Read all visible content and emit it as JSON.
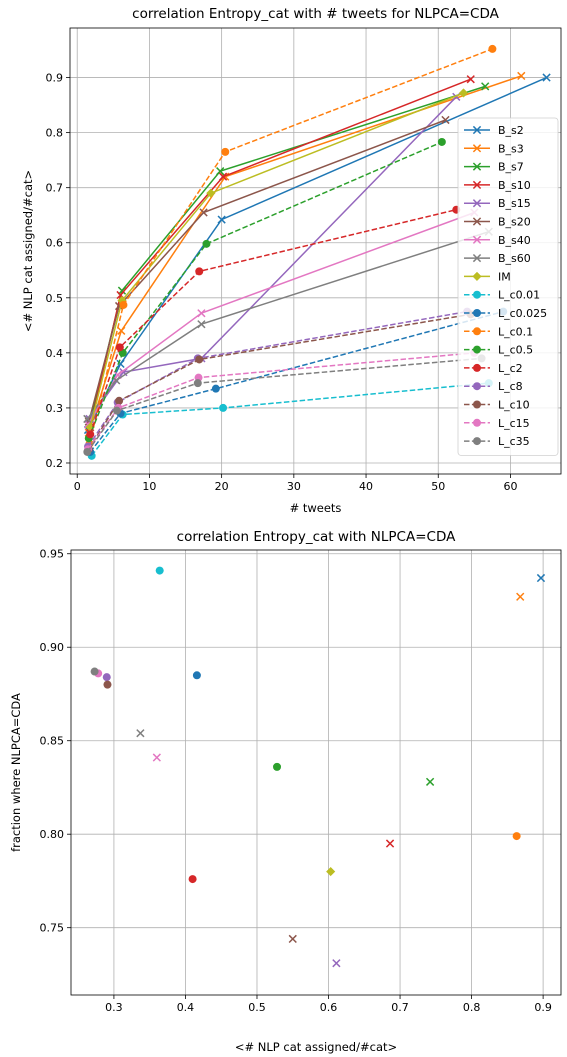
{
  "chart_data": [
    {
      "type": "line",
      "title": "correlation Entropy_cat with # tweets for NLPCA=CDA",
      "xlabel": "# tweets",
      "ylabel": "<# NLP cat assigned/#cat>",
      "xlim": [
        -1,
        67
      ],
      "ylim": [
        0.18,
        0.99
      ],
      "xticks": [
        0,
        10,
        20,
        30,
        40,
        50,
        60
      ],
      "yticks": [
        0.2,
        0.3,
        0.4,
        0.5,
        0.6,
        0.7,
        0.8,
        0.9
      ],
      "grid": true,
      "legend_position": "right",
      "series": [
        {
          "name": "B_s2",
          "color": "#1f77b4",
          "marker": "x",
          "dash": false,
          "x": [
            1.5,
            6.0,
            20.0,
            65.0
          ],
          "y": [
            0.26,
            0.38,
            0.642,
            0.9
          ]
        },
        {
          "name": "B_s3",
          "color": "#ff7f0e",
          "marker": "x",
          "dash": false,
          "x": [
            1.6,
            6.1,
            20.5,
            61.5
          ],
          "y": [
            0.255,
            0.44,
            0.72,
            0.903
          ]
        },
        {
          "name": "B_s7",
          "color": "#2ca02c",
          "marker": "x",
          "dash": false,
          "x": [
            1.7,
            6.2,
            19.8,
            56.5
          ],
          "y": [
            0.27,
            0.513,
            0.73,
            0.884
          ]
        },
        {
          "name": "B_s10",
          "color": "#d62728",
          "marker": "x",
          "dash": false,
          "x": [
            1.8,
            6.0,
            20.2,
            54.5
          ],
          "y": [
            0.265,
            0.505,
            0.72,
            0.897
          ]
        },
        {
          "name": "B_s15",
          "color": "#9467bd",
          "marker": "x",
          "dash": false,
          "x": [
            1.7,
            6.4,
            17.2,
            52.5
          ],
          "y": [
            0.28,
            0.365,
            0.39,
            0.865
          ]
        },
        {
          "name": "B_s20",
          "color": "#8c564b",
          "marker": "x",
          "dash": false,
          "x": [
            1.6,
            5.8,
            17.5,
            51.0
          ],
          "y": [
            0.275,
            0.485,
            0.655,
            0.823
          ]
        },
        {
          "name": "B_s40",
          "color": "#e377c2",
          "marker": "x",
          "dash": false,
          "x": [
            1.5,
            5.6,
            17.2,
            55.0
          ],
          "y": [
            0.27,
            0.36,
            0.472,
            0.655
          ]
        },
        {
          "name": "B_s60",
          "color": "#7f7f7f",
          "marker": "x",
          "dash": false,
          "x": [
            1.4,
            5.4,
            17.2,
            57.0
          ],
          "y": [
            0.28,
            0.35,
            0.452,
            0.62
          ]
        },
        {
          "name": "IM",
          "color": "#bcbd22",
          "marker": "D",
          "dash": false,
          "x": [
            1.8,
            6.2,
            18.5,
            53.5
          ],
          "y": [
            0.265,
            0.495,
            0.69,
            0.872
          ]
        },
        {
          "name": "L_c0.01",
          "color": "#17becf",
          "marker": "o",
          "dash": true,
          "x": [
            2.0,
            6.3,
            20.2,
            57.0
          ],
          "y": [
            0.213,
            0.288,
            0.3,
            0.345
          ]
        },
        {
          "name": "L_c0.025",
          "color": "#1f77b4",
          "marker": "o",
          "dash": true,
          "x": [
            1.8,
            6.0,
            19.2,
            59.0
          ],
          "y": [
            0.22,
            0.29,
            0.335,
            0.475
          ]
        },
        {
          "name": "L_c0.1",
          "color": "#ff7f0e",
          "marker": "o",
          "dash": true,
          "x": [
            1.7,
            6.4,
            20.5,
            57.5
          ],
          "y": [
            0.235,
            0.487,
            0.765,
            0.952
          ]
        },
        {
          "name": "L_c0.5",
          "color": "#2ca02c",
          "marker": "o",
          "dash": true,
          "x": [
            1.6,
            6.3,
            17.9,
            50.5
          ],
          "y": [
            0.245,
            0.4,
            0.598,
            0.783
          ]
        },
        {
          "name": "L_c2",
          "color": "#d62728",
          "marker": "o",
          "dash": true,
          "x": [
            1.8,
            5.9,
            16.9,
            52.5
          ],
          "y": [
            0.252,
            0.41,
            0.548,
            0.66
          ]
        },
        {
          "name": "L_c8",
          "color": "#9467bd",
          "marker": "o",
          "dash": true,
          "x": [
            1.5,
            5.6,
            16.7,
            54.0
          ],
          "y": [
            0.23,
            0.31,
            0.39,
            0.475
          ]
        },
        {
          "name": "L_c10",
          "color": "#8c564b",
          "marker": "o",
          "dash": true,
          "x": [
            1.6,
            5.8,
            16.9,
            54.5
          ],
          "y": [
            0.225,
            0.313,
            0.388,
            0.47
          ]
        },
        {
          "name": "L_c15",
          "color": "#e377c2",
          "marker": "o",
          "dash": true,
          "x": [
            1.5,
            5.7,
            16.8,
            55.0
          ],
          "y": [
            0.225,
            0.3,
            0.355,
            0.4
          ]
        },
        {
          "name": "L_c35",
          "color": "#7f7f7f",
          "marker": "o",
          "dash": true,
          "x": [
            1.4,
            5.5,
            16.7,
            56.0
          ],
          "y": [
            0.22,
            0.295,
            0.345,
            0.39
          ]
        }
      ]
    },
    {
      "type": "scatter",
      "title": "correlation Entropy_cat with NLPCA=CDA",
      "xlabel": "<# NLP cat assigned/#cat>",
      "ylabel": "fraction where NLPCA=CDA",
      "xlim": [
        0.24,
        0.925
      ],
      "ylim": [
        0.714,
        0.952
      ],
      "xticks": [
        0.3,
        0.4,
        0.5,
        0.6,
        0.7,
        0.8,
        0.9
      ],
      "yticks": [
        0.75,
        0.8,
        0.85,
        0.9,
        0.95
      ],
      "grid": true,
      "points": [
        {
          "name": "B_s2",
          "color": "#1f77b4",
          "marker": "x",
          "x": 0.897,
          "y": 0.937
        },
        {
          "name": "B_s3",
          "color": "#ff7f0e",
          "marker": "x",
          "x": 0.868,
          "y": 0.927
        },
        {
          "name": "B_s7",
          "color": "#2ca02c",
          "marker": "x",
          "x": 0.742,
          "y": 0.828
        },
        {
          "name": "B_s10",
          "color": "#d62728",
          "marker": "x",
          "x": 0.686,
          "y": 0.795
        },
        {
          "name": "B_s15",
          "color": "#9467bd",
          "marker": "x",
          "x": 0.611,
          "y": 0.731
        },
        {
          "name": "B_s20",
          "color": "#8c564b",
          "marker": "x",
          "x": 0.55,
          "y": 0.744
        },
        {
          "name": "B_s40",
          "color": "#e377c2",
          "marker": "x",
          "x": 0.36,
          "y": 0.841
        },
        {
          "name": "B_s60",
          "color": "#7f7f7f",
          "marker": "x",
          "x": 0.337,
          "y": 0.854
        },
        {
          "name": "IM",
          "color": "#bcbd22",
          "marker": "D",
          "x": 0.603,
          "y": 0.78
        },
        {
          "name": "L_c0.01",
          "color": "#17becf",
          "marker": "o",
          "x": 0.364,
          "y": 0.941
        },
        {
          "name": "L_c0.025",
          "color": "#1f77b4",
          "marker": "o",
          "x": 0.416,
          "y": 0.885
        },
        {
          "name": "L_c0.1",
          "color": "#ff7f0e",
          "marker": "o",
          "x": 0.863,
          "y": 0.799
        },
        {
          "name": "L_c0.5",
          "color": "#2ca02c",
          "marker": "o",
          "x": 0.528,
          "y": 0.836
        },
        {
          "name": "L_c2",
          "color": "#d62728",
          "marker": "o",
          "x": 0.41,
          "y": 0.776
        },
        {
          "name": "L_c8",
          "color": "#9467bd",
          "marker": "o",
          "x": 0.29,
          "y": 0.884
        },
        {
          "name": "L_c10",
          "color": "#8c564b",
          "marker": "o",
          "x": 0.291,
          "y": 0.88
        },
        {
          "name": "L_c15",
          "color": "#e377c2",
          "marker": "o",
          "x": 0.278,
          "y": 0.886
        },
        {
          "name": "L_c35",
          "color": "#7f7f7f",
          "marker": "o",
          "x": 0.273,
          "y": 0.887
        }
      ]
    }
  ]
}
